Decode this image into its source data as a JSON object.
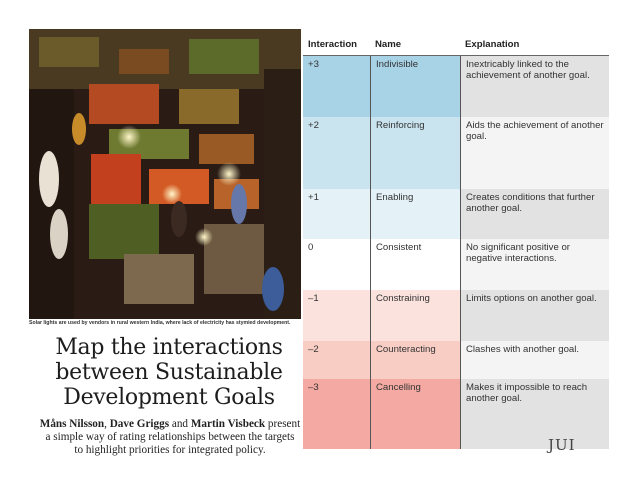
{
  "photo": {
    "caption": "Solar lights are used by vendors in rural western India, where lack of electricity has stymied development."
  },
  "headline": {
    "lines": [
      "Map the interactions",
      "between Sustainable",
      "Development Goals"
    ]
  },
  "byline": {
    "author1": "Måns Nilsson",
    "sep1": ", ",
    "author2": "Dave Griggs",
    "and": " and ",
    "author3": "Martin Visbeck",
    "tail1": " present",
    "line2": "a simple way of rating relationships between the targets",
    "line3": "to highlight priorities for integrated policy."
  },
  "table": {
    "headers": [
      "Interaction",
      "Name",
      "Explanation"
    ],
    "rows": [
      {
        "score": "+3",
        "name": "Indivisible",
        "explanation": "Inextricably linked to the achievement of another goal.",
        "color": "#a8d2e5"
      },
      {
        "score": "+2",
        "name": "Reinforcing",
        "explanation": "Aids the achievement of another goal.",
        "color": "#c9e3ef"
      },
      {
        "score": "+1",
        "name": "Enabling",
        "explanation": "Creates conditions that further another goal.",
        "color": "#e4f1f7"
      },
      {
        "score": "0",
        "name": "Consistent",
        "explanation": "No significant positive or negative interactions.",
        "color": "#ffffff"
      },
      {
        "score": "–1",
        "name": "Constraining",
        "explanation": "Limits options on another goal.",
        "color": "#fbe2dd"
      },
      {
        "score": "–2",
        "name": "Counteracting",
        "explanation": "Clashes with another goal.",
        "color": "#f8cdc4"
      },
      {
        "score": "–3",
        "name": "Cancelling",
        "explanation": "Makes it impossible to reach another goal.",
        "color": "#f4aaa2"
      }
    ]
  },
  "watermark": "JUI"
}
